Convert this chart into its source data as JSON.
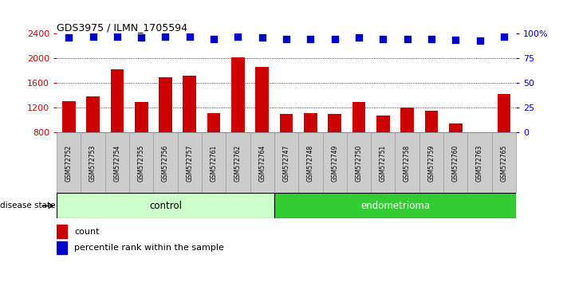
{
  "title": "GDS3975 / ILMN_1705594",
  "samples": [
    "GSM572752",
    "GSM572753",
    "GSM572754",
    "GSM572755",
    "GSM572756",
    "GSM572757",
    "GSM572761",
    "GSM572762",
    "GSM572764",
    "GSM572747",
    "GSM572748",
    "GSM572749",
    "GSM572750",
    "GSM572751",
    "GSM572758",
    "GSM572759",
    "GSM572760",
    "GSM572763",
    "GSM572765"
  ],
  "counts": [
    1310,
    1380,
    1830,
    1290,
    1700,
    1720,
    1110,
    2020,
    1870,
    1100,
    1120,
    1100,
    1300,
    1080,
    1210,
    1160,
    950,
    770,
    1420
  ],
  "percentiles": [
    96,
    97,
    97,
    96,
    97,
    97,
    95,
    97,
    96,
    95,
    95,
    95,
    96,
    95,
    95,
    95,
    94,
    93,
    97
  ],
  "n_control": 9,
  "n_endometrioma": 10,
  "ylim_left": [
    800,
    2400
  ],
  "ylim_right": [
    0,
    100
  ],
  "yticks_left": [
    800,
    1200,
    1600,
    2000,
    2400
  ],
  "yticks_right": [
    0,
    25,
    50,
    75,
    100
  ],
  "ytick_right_labels": [
    "0",
    "25",
    "50",
    "75",
    "100%"
  ],
  "bar_color": "#cc0000",
  "dot_color": "#0000cc",
  "bar_width": 0.55,
  "control_bg": "#ccffcc",
  "endo_bg": "#33cc33",
  "tick_bg": "#cccccc",
  "disease_state_label": "disease state",
  "control_label": "control",
  "endo_label": "endometrioma",
  "legend_count": "count",
  "legend_pct": "percentile rank within the sample",
  "dotted_gridlines": [
    1200,
    1600,
    2000
  ],
  "dot_size": 28
}
